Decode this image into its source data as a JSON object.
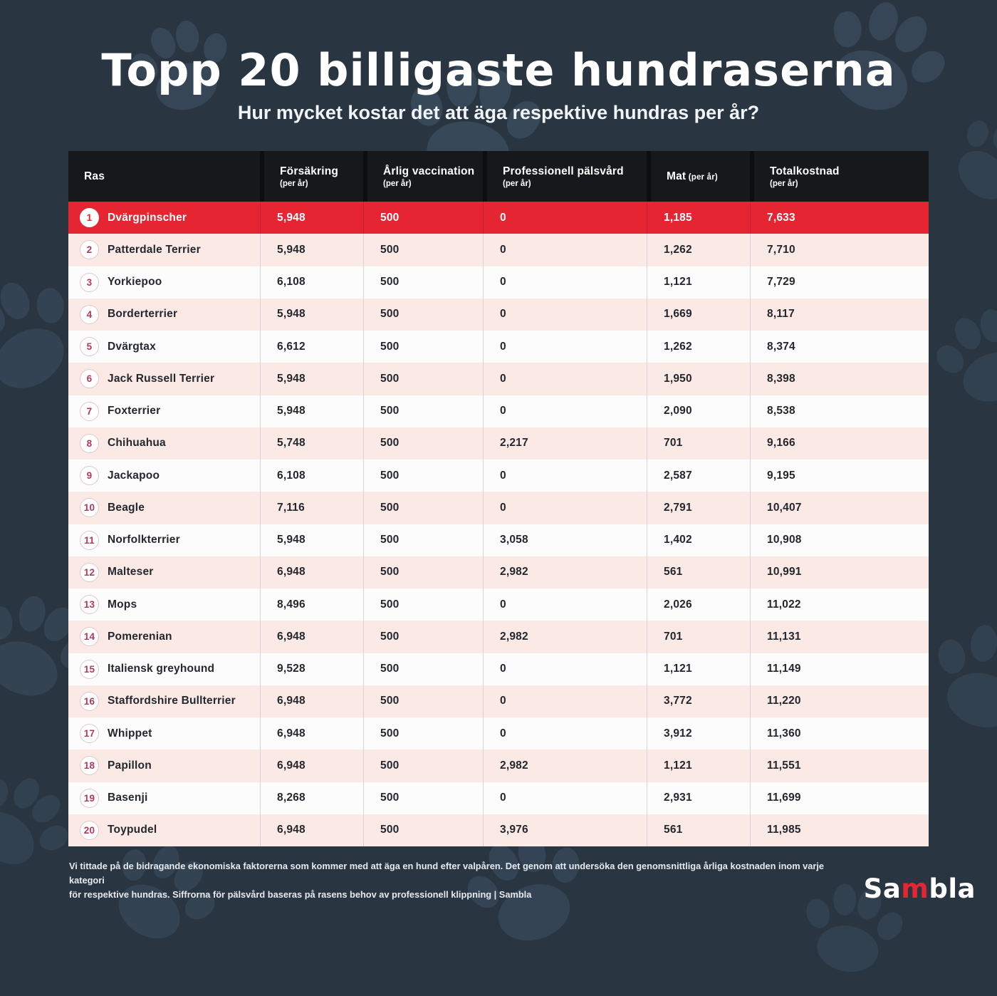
{
  "title": "Topp 20 billigaste hundraserna",
  "subtitle": "Hur mycket kostar det att äga respektive hundras per år?",
  "colors": {
    "background": "#293541",
    "header_bg": "#16181c",
    "highlight_red": "#e52532",
    "row_pink": "#fbe9e6",
    "row_white": "#fdfcfc",
    "badge_number": "#b23a58"
  },
  "table": {
    "columns": [
      {
        "label": "Ras",
        "sub": "",
        "inline": false
      },
      {
        "label": "Försäkring",
        "sub": "(per år)",
        "inline": false
      },
      {
        "label": "Årlig vaccination",
        "sub": "(per år)",
        "inline": false
      },
      {
        "label": "Professionell pälsvård",
        "sub": "(per år)",
        "inline": false
      },
      {
        "label": "Mat",
        "sub": "(per år)",
        "inline": true
      },
      {
        "label": "Totalkostnad",
        "sub": "(per år)",
        "inline": false
      }
    ],
    "rows": [
      {
        "rank": "1",
        "breed": "Dvärgpinscher",
        "insurance": "5,948",
        "vaccination": "500",
        "grooming": "0",
        "food": "1,185",
        "total": "7,633",
        "highlight": true
      },
      {
        "rank": "2",
        "breed": "Patterdale Terrier",
        "insurance": "5,948",
        "vaccination": "500",
        "grooming": "0",
        "food": "1,262",
        "total": "7,710",
        "highlight": false
      },
      {
        "rank": "3",
        "breed": "Yorkiepoo",
        "insurance": "6,108",
        "vaccination": "500",
        "grooming": "0",
        "food": "1,121",
        "total": "7,729",
        "highlight": false
      },
      {
        "rank": "4",
        "breed": "Borderterrier",
        "insurance": "5,948",
        "vaccination": "500",
        "grooming": "0",
        "food": "1,669",
        "total": "8,117",
        "highlight": false
      },
      {
        "rank": "5",
        "breed": "Dvärgtax",
        "insurance": "6,612",
        "vaccination": "500",
        "grooming": "0",
        "food": "1,262",
        "total": "8,374",
        "highlight": false
      },
      {
        "rank": "6",
        "breed": "Jack Russell Terrier",
        "insurance": "5,948",
        "vaccination": "500",
        "grooming": "0",
        "food": "1,950",
        "total": "8,398",
        "highlight": false
      },
      {
        "rank": "7",
        "breed": "Foxterrier",
        "insurance": "5,948",
        "vaccination": "500",
        "grooming": "0",
        "food": "2,090",
        "total": "8,538",
        "highlight": false
      },
      {
        "rank": "8",
        "breed": "Chihuahua",
        "insurance": "5,748",
        "vaccination": "500",
        "grooming": "2,217",
        "food": "701",
        "total": "9,166",
        "highlight": false
      },
      {
        "rank": "9",
        "breed": "Jackapoo",
        "insurance": "6,108",
        "vaccination": "500",
        "grooming": "0",
        "food": "2,587",
        "total": "9,195",
        "highlight": false
      },
      {
        "rank": "10",
        "breed": "Beagle",
        "insurance": "7,116",
        "vaccination": "500",
        "grooming": "0",
        "food": "2,791",
        "total": "10,407",
        "highlight": false
      },
      {
        "rank": "11",
        "breed": "Norfolkterrier",
        "insurance": "5,948",
        "vaccination": "500",
        "grooming": "3,058",
        "food": "1,402",
        "total": "10,908",
        "highlight": false
      },
      {
        "rank": "12",
        "breed": "Malteser",
        "insurance": "6,948",
        "vaccination": "500",
        "grooming": "2,982",
        "food": "561",
        "total": "10,991",
        "highlight": false
      },
      {
        "rank": "13",
        "breed": "Mops",
        "insurance": "8,496",
        "vaccination": "500",
        "grooming": "0",
        "food": "2,026",
        "total": "11,022",
        "highlight": false
      },
      {
        "rank": "14",
        "breed": "Pomerenian",
        "insurance": "6,948",
        "vaccination": "500",
        "grooming": "2,982",
        "food": "701",
        "total": "11,131",
        "highlight": false
      },
      {
        "rank": "15",
        "breed": "Italiensk greyhound",
        "insurance": "9,528",
        "vaccination": "500",
        "grooming": "0",
        "food": "1,121",
        "total": "11,149",
        "highlight": false
      },
      {
        "rank": "16",
        "breed": "Staffordshire Bullterrier",
        "insurance": "6,948",
        "vaccination": "500",
        "grooming": "0",
        "food": "3,772",
        "total": "11,220",
        "highlight": false
      },
      {
        "rank": "17",
        "breed": "Whippet",
        "insurance": "6,948",
        "vaccination": "500",
        "grooming": "0",
        "food": "3,912",
        "total": "11,360",
        "highlight": false
      },
      {
        "rank": "18",
        "breed": "Papillon",
        "insurance": "6,948",
        "vaccination": "500",
        "grooming": "2,982",
        "food": "1,121",
        "total": "11,551",
        "highlight": false
      },
      {
        "rank": "19",
        "breed": "Basenji",
        "insurance": "8,268",
        "vaccination": "500",
        "grooming": "0",
        "food": "2,931",
        "total": "11,699",
        "highlight": false
      },
      {
        "rank": "20",
        "breed": "Toypudel",
        "insurance": "6,948",
        "vaccination": "500",
        "grooming": "3,976",
        "food": "561",
        "total": "11,985",
        "highlight": false
      }
    ]
  },
  "chart_data": {
    "type": "table",
    "title": "Topp 20 billigaste hundraserna",
    "subtitle": "Hur mycket kostar det att äga respektive hundras per år?",
    "columns": [
      "Ras",
      "Försäkring (per år)",
      "Årlig vaccination (per år)",
      "Professionell pälsvård (per år)",
      "Mat (per år)",
      "Totalkostnad (per år)"
    ],
    "rows": [
      [
        "Dvärgpinscher",
        5948,
        500,
        0,
        1185,
        7633
      ],
      [
        "Patterdale Terrier",
        5948,
        500,
        0,
        1262,
        7710
      ],
      [
        "Yorkiepoo",
        6108,
        500,
        0,
        1121,
        7729
      ],
      [
        "Borderterrier",
        5948,
        500,
        0,
        1669,
        8117
      ],
      [
        "Dvärgtax",
        6612,
        500,
        0,
        1262,
        8374
      ],
      [
        "Jack Russell Terrier",
        5948,
        500,
        0,
        1950,
        8398
      ],
      [
        "Foxterrier",
        5948,
        500,
        0,
        2090,
        8538
      ],
      [
        "Chihuahua",
        5748,
        500,
        2217,
        701,
        9166
      ],
      [
        "Jackapoo",
        6108,
        500,
        0,
        2587,
        9195
      ],
      [
        "Beagle",
        7116,
        500,
        0,
        2791,
        10407
      ],
      [
        "Norfolkterrier",
        5948,
        500,
        3058,
        1402,
        10908
      ],
      [
        "Malteser",
        6948,
        500,
        2982,
        561,
        10991
      ],
      [
        "Mops",
        8496,
        500,
        0,
        2026,
        11022
      ],
      [
        "Pomerenian",
        6948,
        500,
        2982,
        701,
        11131
      ],
      [
        "Italiensk greyhound",
        9528,
        500,
        0,
        1121,
        11149
      ],
      [
        "Staffordshire Bullterrier",
        6948,
        500,
        0,
        3772,
        11220
      ],
      [
        "Whippet",
        6948,
        500,
        0,
        3912,
        11360
      ],
      [
        "Papillon",
        6948,
        500,
        2982,
        1121,
        11551
      ],
      [
        "Basenji",
        8268,
        500,
        0,
        2931,
        11699
      ],
      [
        "Toypudel",
        6948,
        500,
        3976,
        561,
        11985
      ]
    ]
  },
  "footer": {
    "line1": "Vi tittade på de bidragande ekonomiska faktorerna som kommer med att äga en hund efter valpåren. Det genom att undersöka den genomsnittliga årliga kostnaden inom varje kategori",
    "line2": "för respektive hundras. Siffrorna för pälsvård baseras på rasens behov av professionell klippning | Sambla",
    "logo": {
      "prefix": "Sa",
      "accent": "m",
      "suffix": "bla"
    }
  }
}
